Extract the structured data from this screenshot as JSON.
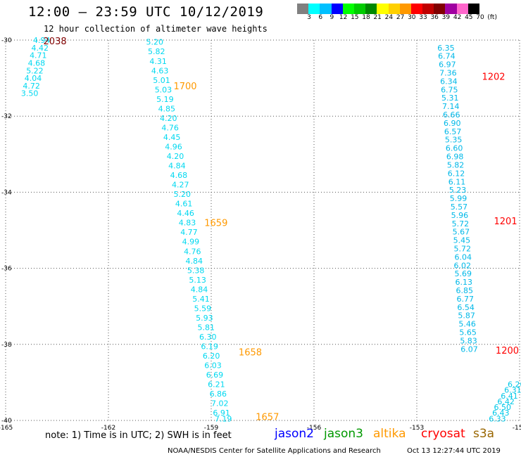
{
  "title": "12:00 – 23:59 UTC 10/12/2019",
  "subtitle": "12 hour collection of altimeter wave heights",
  "colorbar": {
    "unit": "(ft)",
    "colors": [
      "#808080",
      "#00ffff",
      "#00c0ff",
      "#0000ff",
      "#00ff00",
      "#00cc00",
      "#008800",
      "#ffff00",
      "#ffd000",
      "#ff9900",
      "#ff0000",
      "#c00000",
      "#800000",
      "#a000a0",
      "#ff66cc",
      "#000000"
    ],
    "labels": [
      "3",
      "6",
      "9",
      "12",
      "15",
      "18",
      "21",
      "24",
      "27",
      "30",
      "33",
      "36",
      "39",
      "42",
      "45",
      "70"
    ]
  },
  "chart_data": {
    "type": "scatter",
    "xlim": [
      -165,
      -150
    ],
    "ylim": [
      -40,
      -30
    ],
    "x_ticks": [
      -165,
      -162,
      -159,
      -156,
      -153,
      -150
    ],
    "y_ticks": [
      -30,
      -32,
      -34,
      -36,
      -38,
      -40
    ],
    "grid": true,
    "tracks": [
      {
        "satellite": "altika",
        "color": "#00d8f0",
        "points": [
          {
            "lon": -164.2,
            "lat": -30.0,
            "swh": "4.94"
          },
          {
            "lon": -164.25,
            "lat": -30.2,
            "swh": "4.42"
          },
          {
            "lon": -164.3,
            "lat": -30.4,
            "swh": "4.71"
          },
          {
            "lon": -164.35,
            "lat": -30.6,
            "swh": "4.68"
          },
          {
            "lon": -164.4,
            "lat": -30.8,
            "swh": "5.22"
          },
          {
            "lon": -164.45,
            "lat": -31.0,
            "swh": "4.04"
          },
          {
            "lon": -164.5,
            "lat": -31.2,
            "swh": "4.72"
          },
          {
            "lon": -164.55,
            "lat": -31.4,
            "swh": "3.50"
          },
          {
            "lon": -160.9,
            "lat": -30.05,
            "swh": "5.20"
          },
          {
            "lon": -160.85,
            "lat": -30.3,
            "swh": "5.82"
          },
          {
            "lon": -160.8,
            "lat": -30.55,
            "swh": "4.31"
          },
          {
            "lon": -160.75,
            "lat": -30.8,
            "swh": "4.63"
          },
          {
            "lon": -160.7,
            "lat": -31.05,
            "swh": "5.01"
          },
          {
            "lon": -160.65,
            "lat": -31.3,
            "swh": "5.03"
          },
          {
            "lon": -160.6,
            "lat": -31.55,
            "swh": "5.19"
          },
          {
            "lon": -160.55,
            "lat": -31.8,
            "swh": "4.85"
          },
          {
            "lon": -160.5,
            "lat": -32.05,
            "swh": "4.20"
          },
          {
            "lon": -160.45,
            "lat": -32.3,
            "swh": "4.76"
          },
          {
            "lon": -160.4,
            "lat": -32.55,
            "swh": "4.45"
          },
          {
            "lon": -160.35,
            "lat": -32.8,
            "swh": "4.96"
          },
          {
            "lon": -160.3,
            "lat": -33.05,
            "swh": "4.20"
          },
          {
            "lon": -160.25,
            "lat": -33.3,
            "swh": "4.84"
          },
          {
            "lon": -160.2,
            "lat": -33.55,
            "swh": "4.68"
          },
          {
            "lon": -160.15,
            "lat": -33.8,
            "swh": "4.27"
          },
          {
            "lon": -160.1,
            "lat": -34.05,
            "swh": "5.20"
          },
          {
            "lon": -160.05,
            "lat": -34.3,
            "swh": "4.61"
          },
          {
            "lon": -160.0,
            "lat": -34.55,
            "swh": "4.46"
          },
          {
            "lon": -159.95,
            "lat": -34.8,
            "swh": "4.83"
          },
          {
            "lon": -159.9,
            "lat": -35.05,
            "swh": "4.77"
          },
          {
            "lon": -159.85,
            "lat": -35.3,
            "swh": "4.99"
          },
          {
            "lon": -159.8,
            "lat": -35.55,
            "swh": "4.76"
          },
          {
            "lon": -159.75,
            "lat": -35.8,
            "swh": "4.84"
          },
          {
            "lon": -159.7,
            "lat": -36.05,
            "swh": "5.38"
          },
          {
            "lon": -159.65,
            "lat": -36.3,
            "swh": "5.13"
          },
          {
            "lon": -159.6,
            "lat": -36.55,
            "swh": "4.84"
          },
          {
            "lon": -159.55,
            "lat": -36.8,
            "swh": "5.41"
          },
          {
            "lon": -159.5,
            "lat": -37.05,
            "swh": "5.59"
          },
          {
            "lon": -159.45,
            "lat": -37.3,
            "swh": "5.93"
          },
          {
            "lon": -159.4,
            "lat": -37.55,
            "swh": "5.81"
          },
          {
            "lon": -159.35,
            "lat": -37.8,
            "swh": "6.30"
          },
          {
            "lon": -159.3,
            "lat": -38.05,
            "swh": "6.19"
          },
          {
            "lon": -159.25,
            "lat": -38.3,
            "swh": "6.20"
          },
          {
            "lon": -159.2,
            "lat": -38.55,
            "swh": "6.03"
          },
          {
            "lon": -159.15,
            "lat": -38.8,
            "swh": "6.69"
          },
          {
            "lon": -159.1,
            "lat": -39.05,
            "swh": "6.21"
          },
          {
            "lon": -159.05,
            "lat": -39.3,
            "swh": "6.86"
          },
          {
            "lon": -159.0,
            "lat": -39.55,
            "swh": "7.02"
          },
          {
            "lon": -158.95,
            "lat": -39.8,
            "swh": "6.91"
          },
          {
            "lon": -158.9,
            "lat": -39.95,
            "swh": "7.19"
          }
        ]
      },
      {
        "satellite": "cryosat",
        "color": "#00b8e8",
        "points": [
          {
            "lon": -152.4,
            "lat": -30.2,
            "swh": "6.35"
          },
          {
            "lon": -152.38,
            "lat": -30.42,
            "swh": "6.74"
          },
          {
            "lon": -152.36,
            "lat": -30.64,
            "swh": "6.97"
          },
          {
            "lon": -152.34,
            "lat": -30.86,
            "swh": "7.36"
          },
          {
            "lon": -152.32,
            "lat": -31.08,
            "swh": "6.34"
          },
          {
            "lon": -152.3,
            "lat": -31.3,
            "swh": "6.75"
          },
          {
            "lon": -152.28,
            "lat": -31.52,
            "swh": "5.31"
          },
          {
            "lon": -152.26,
            "lat": -31.74,
            "swh": "7.14"
          },
          {
            "lon": -152.24,
            "lat": -31.96,
            "swh": "6.66"
          },
          {
            "lon": -152.22,
            "lat": -32.18,
            "swh": "6.90"
          },
          {
            "lon": -152.2,
            "lat": -32.4,
            "swh": "6.57"
          },
          {
            "lon": -152.18,
            "lat": -32.62,
            "swh": "5.35"
          },
          {
            "lon": -152.16,
            "lat": -32.84,
            "swh": "6.60"
          },
          {
            "lon": -152.14,
            "lat": -33.06,
            "swh": "6.98"
          },
          {
            "lon": -152.12,
            "lat": -33.28,
            "swh": "5.82"
          },
          {
            "lon": -152.1,
            "lat": -33.5,
            "swh": "6.12"
          },
          {
            "lon": -152.08,
            "lat": -33.72,
            "swh": "6.11"
          },
          {
            "lon": -152.06,
            "lat": -33.94,
            "swh": "5.23"
          },
          {
            "lon": -152.04,
            "lat": -34.16,
            "swh": "5.99"
          },
          {
            "lon": -152.02,
            "lat": -34.38,
            "swh": "5.57"
          },
          {
            "lon": -152.0,
            "lat": -34.6,
            "swh": "5.96"
          },
          {
            "lon": -151.98,
            "lat": -34.82,
            "swh": "5.72"
          },
          {
            "lon": -151.96,
            "lat": -35.04,
            "swh": "5.67"
          },
          {
            "lon": -151.94,
            "lat": -35.26,
            "swh": "5.45"
          },
          {
            "lon": -151.92,
            "lat": -35.48,
            "swh": "5.72"
          },
          {
            "lon": -151.9,
            "lat": -35.7,
            "swh": "6.04"
          },
          {
            "lon": -151.92,
            "lat": -35.92,
            "swh": "6.02"
          },
          {
            "lon": -151.9,
            "lat": -36.14,
            "swh": "5.69"
          },
          {
            "lon": -151.88,
            "lat": -36.36,
            "swh": "6.13"
          },
          {
            "lon": -151.86,
            "lat": -36.58,
            "swh": "6.85"
          },
          {
            "lon": -151.84,
            "lat": -36.8,
            "swh": "6.77"
          },
          {
            "lon": -151.82,
            "lat": -37.02,
            "swh": "6.54"
          },
          {
            "lon": -151.8,
            "lat": -37.24,
            "swh": "5.87"
          },
          {
            "lon": -151.78,
            "lat": -37.46,
            "swh": "5.46"
          },
          {
            "lon": -151.76,
            "lat": -37.68,
            "swh": "5.65"
          },
          {
            "lon": -151.74,
            "lat": -37.9,
            "swh": "5.83"
          },
          {
            "lon": -151.72,
            "lat": -38.12,
            "swh": "6.07"
          }
        ]
      },
      {
        "satellite": "s3a",
        "color": "#00c8e8",
        "points": [
          {
            "lon": -150.9,
            "lat": -39.95,
            "swh": "6.33"
          },
          {
            "lon": -150.8,
            "lat": -39.8,
            "swh": "6.43"
          },
          {
            "lon": -150.75,
            "lat": -39.65,
            "swh": "6.50"
          },
          {
            "lon": -150.65,
            "lat": -39.5,
            "swh": "6.42"
          },
          {
            "lon": -150.55,
            "lat": -39.35,
            "swh": "6.41"
          },
          {
            "lon": -150.45,
            "lat": -39.2,
            "swh": "6.31"
          },
          {
            "lon": -150.35,
            "lat": -39.05,
            "swh": "6.20"
          }
        ]
      }
    ],
    "time_labels": [
      {
        "text": "2038",
        "lon": -163.9,
        "lat": -30.02,
        "color": "#800000"
      },
      {
        "text": "1700",
        "lon": -160.1,
        "lat": -31.2,
        "color": "#ff9900"
      },
      {
        "text": "1659",
        "lon": -159.2,
        "lat": -34.8,
        "color": "#ff9900"
      },
      {
        "text": "1658",
        "lon": -158.2,
        "lat": -38.2,
        "color": "#ff9900"
      },
      {
        "text": "1657",
        "lon": -157.7,
        "lat": -39.9,
        "color": "#ff9900"
      },
      {
        "text": "1202",
        "lon": -151.1,
        "lat": -30.95,
        "color": "#ff0000"
      },
      {
        "text": "1201",
        "lon": -150.75,
        "lat": -34.75,
        "color": "#ff0000"
      },
      {
        "text": "1200",
        "lon": -150.7,
        "lat": -38.15,
        "color": "#ff0000"
      }
    ]
  },
  "footer": {
    "note": "note: 1) Time is in UTC; 2) SWH is in feet",
    "satellites": [
      {
        "name": "jason2",
        "color": "#0000ff"
      },
      {
        "name": "jason3",
        "color": "#009900"
      },
      {
        "name": "altika",
        "color": "#ff9900"
      },
      {
        "name": "cryosat",
        "color": "#ff0000"
      },
      {
        "name": "s3a",
        "color": "#996600"
      }
    ],
    "credit": "NOAA/NESDIS Center for Satellite Applications and Research",
    "timestamp": "Oct 13 12:27:44 UTC 2019"
  }
}
